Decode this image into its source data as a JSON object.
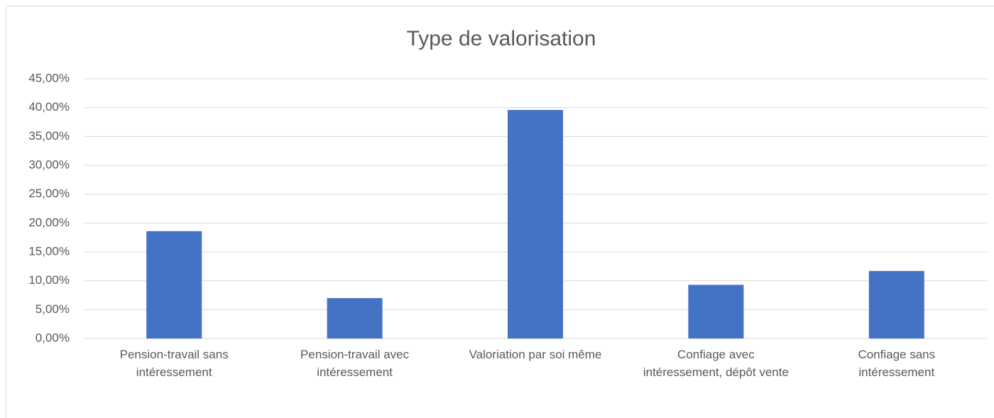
{
  "chart_data": {
    "type": "bar",
    "title": "Type de valorisation",
    "categories": [
      "Pension-travail sans intéressement",
      "Pension-travail avec intéressement",
      "Valoriation par soi même",
      "Confiage avec intéressement, dépôt vente",
      "Confiage sans intéressement"
    ],
    "values": [
      18.6,
      7.0,
      39.6,
      9.3,
      11.7
    ],
    "color": "#4472c4",
    "ylim": [
      0,
      45
    ],
    "yticks": [
      {
        "value": 0,
        "label": "0,00%"
      },
      {
        "value": 5,
        "label": "5,00%"
      },
      {
        "value": 10,
        "label": "10,00%"
      },
      {
        "value": 15,
        "label": "15,00%"
      },
      {
        "value": 20,
        "label": "20,00%"
      },
      {
        "value": 25,
        "label": "25,00%"
      },
      {
        "value": 30,
        "label": "30,00%"
      },
      {
        "value": 35,
        "label": "35,00%"
      },
      {
        "value": 40,
        "label": "40,00%"
      },
      {
        "value": 45,
        "label": "45,00%"
      }
    ],
    "grid": true
  }
}
